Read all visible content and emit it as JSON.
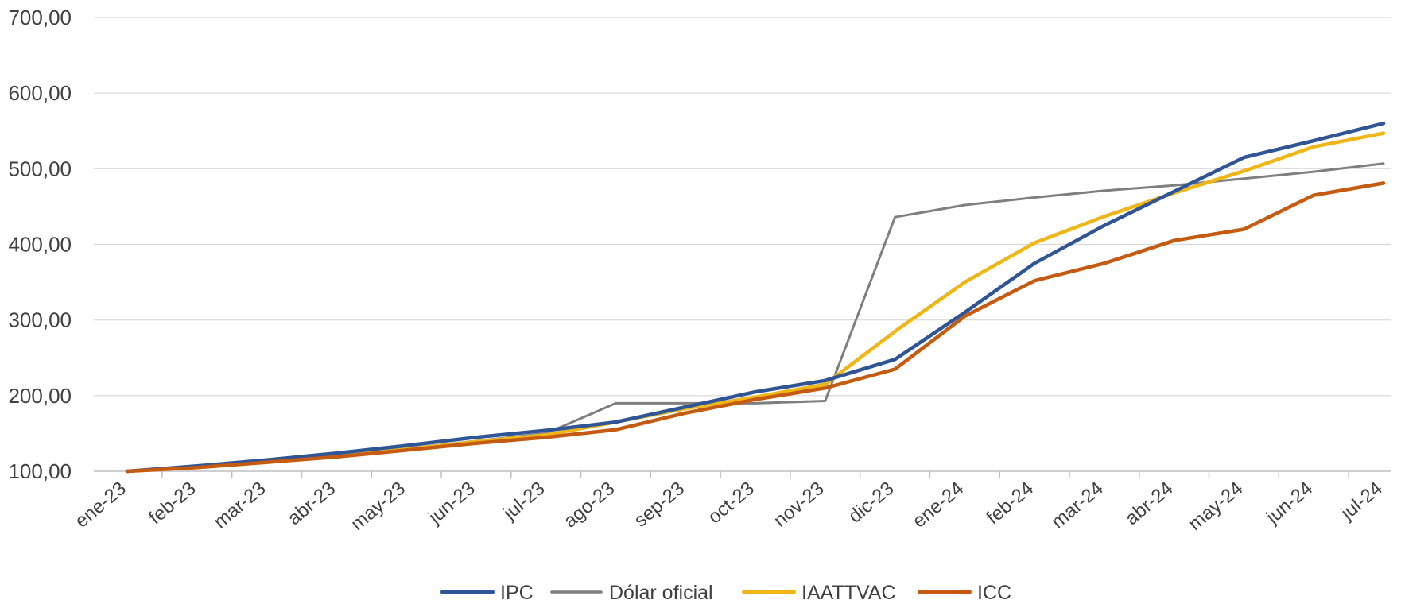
{
  "chart_data": {
    "type": "line",
    "title": "",
    "xlabel": "",
    "ylabel": "",
    "categories": [
      "ene-23",
      "feb-23",
      "mar-23",
      "abr-23",
      "may-23",
      "jun-23",
      "jul-23",
      "ago-23",
      "sep-23",
      "oct-23",
      "nov-23",
      "dic-23",
      "ene-24",
      "feb-24",
      "mar-24",
      "abr-24",
      "may-24",
      "jun-24",
      "jul-24"
    ],
    "y_tick_labels": [
      "100,00",
      "200,00",
      "300,00",
      "400,00",
      "500,00",
      "600,00",
      "700,00"
    ],
    "y_ticks": [
      100,
      200,
      300,
      400,
      500,
      600,
      700
    ],
    "ylim": [
      100,
      700
    ],
    "grid": true,
    "legend_position": "bottom",
    "series": [
      {
        "name": "IPC",
        "color": "#2f5597",
        "values": [
          100,
          107,
          115,
          124,
          134,
          145,
          154,
          165,
          185,
          205,
          220,
          248,
          310,
          375,
          425,
          470,
          515,
          537,
          560
        ]
      },
      {
        "name": "Dólar oficial",
        "color": "#7f7f7f",
        "values": [
          100,
          106,
          113,
          122,
          130,
          140,
          150,
          190,
          190,
          190,
          193,
          436,
          452,
          462,
          471,
          478,
          487,
          496,
          507
        ]
      },
      {
        "name": "IAATTVAC",
        "color": "#f0b616",
        "values": [
          100,
          105,
          112,
          120,
          129,
          139,
          148,
          165,
          183,
          198,
          215,
          285,
          350,
          402,
          437,
          468,
          497,
          529,
          547
        ]
      },
      {
        "name": "ICC",
        "color": "#c55a11",
        "values": [
          100,
          105,
          112,
          119,
          128,
          137,
          145,
          155,
          177,
          195,
          210,
          235,
          305,
          352,
          375,
          405,
          420,
          465,
          481
        ]
      }
    ]
  }
}
